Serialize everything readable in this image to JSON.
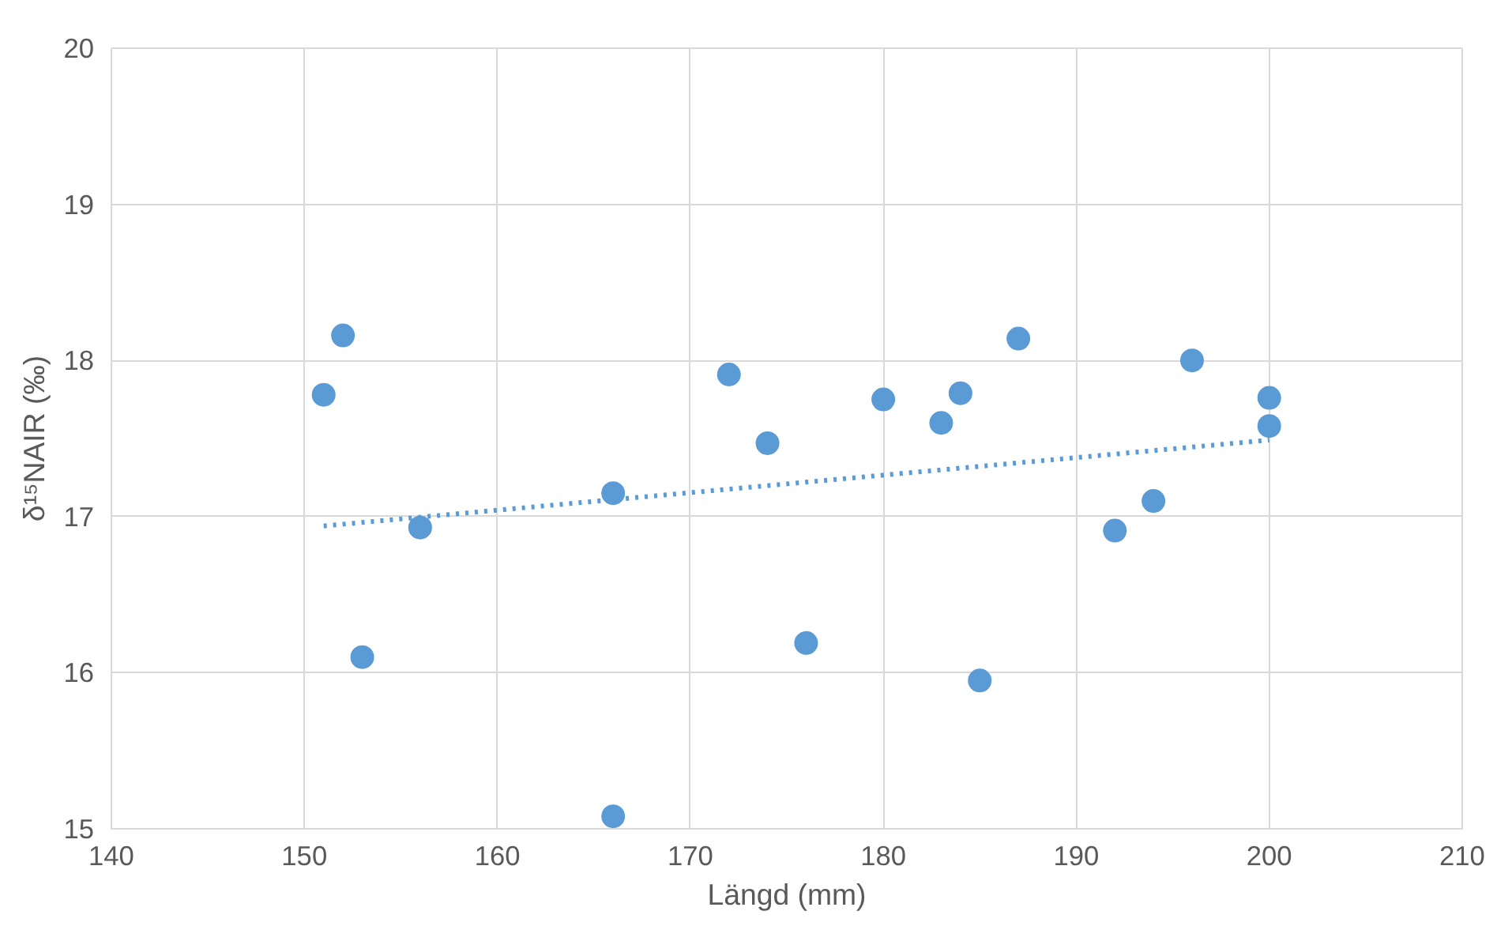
{
  "chart_data": {
    "type": "scatter",
    "xlabel": "Längd (mm)",
    "ylabel": "δ¹⁵NAIR (‰)",
    "xlim": [
      140,
      210
    ],
    "xticks": [
      140,
      150,
      160,
      170,
      180,
      190,
      200,
      210
    ],
    "ylim": [
      15,
      20
    ],
    "yticks": [
      15,
      16,
      17,
      18,
      19,
      20
    ],
    "grid": true,
    "series": [
      {
        "marker": "circle",
        "color": "#5b9bd5",
        "x": [
          151,
          152,
          153,
          156,
          166,
          166,
          172,
          174,
          176,
          180,
          183,
          184,
          185,
          187,
          192,
          194,
          196,
          200,
          200
        ],
        "values": [
          17.78,
          18.16,
          16.1,
          16.93,
          17.15,
          15.08,
          17.91,
          17.47,
          16.19,
          17.75,
          17.6,
          17.79,
          15.95,
          18.14,
          16.91,
          17.1,
          18.0,
          17.76,
          17.58
        ]
      },
      {
        "type": "line",
        "line_style": "dotted",
        "color": "#5b9bd5",
        "x": [
          151,
          200
        ],
        "values": [
          16.94,
          17.49
        ]
      }
    ]
  }
}
